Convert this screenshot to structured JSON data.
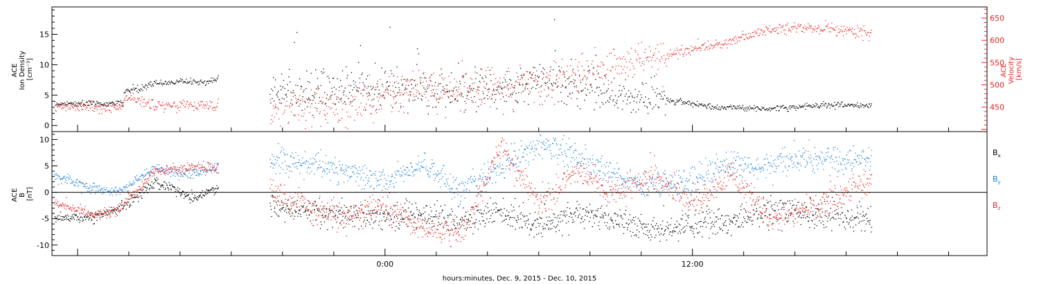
{
  "chart_data": [
    {
      "type": "scatter",
      "title": "",
      "ylabel_lines": [
        "ACE",
        "Ion Density",
        "[cm⁻³]"
      ],
      "y2label_lines": [
        "ACE",
        "Velocity",
        "[km/s]"
      ],
      "ylim": [
        -1,
        19.5
      ],
      "y2lim": [
        395,
        675
      ],
      "yticks": [
        0,
        5,
        10,
        15
      ],
      "y2ticks": [
        450,
        500,
        550,
        600,
        650
      ],
      "colors": {
        "density": "#000000",
        "velocity": "#e8201e"
      },
      "series": [
        {
          "axis": "left",
          "color": "#000000",
          "segments": [
            {
              "x": [
                -12.9,
                -12.0,
                -11.0,
                -10.2
              ],
              "y": [
                3.6,
                3.7,
                3.6,
                3.9
              ]
            },
            {
              "x": [
                -10.2,
                -9.5,
                -9.0,
                -8.0,
                -7.0,
                -6.5
              ],
              "y": [
                5.6,
                6.2,
                7.0,
                7.3,
                7.2,
                7.8
              ]
            },
            {
              "x": [
                -4.5,
                -3.0,
                -1.5,
                0.0,
                1.5,
                3.0,
                4.5,
                6.0,
                7.5,
                9.0,
                10.5,
                11.5,
                12.0,
                13.5,
                15.0,
                16.5,
                18.0,
                19.0
              ],
              "y": [
                6.0,
                5.5,
                6.0,
                6.5,
                6.0,
                5.5,
                6.5,
                7.5,
                7.0,
                5.0,
                4.5,
                4.0,
                3.5,
                3.0,
                2.8,
                3.2,
                3.5,
                3.4
              ]
            }
          ]
        },
        {
          "axis": "right",
          "color": "#e8201e",
          "segments": [
            {
              "x": [
                -12.9,
                -12.0,
                -11.0,
                -10.2
              ],
              "y": [
                452,
                451,
                450,
                450
              ]
            },
            {
              "x": [
                -10.2,
                -9.5,
                -9.0,
                -8.0,
                -7.0,
                -6.5
              ],
              "y": [
                470,
                462,
                455,
                458,
                454,
                452
              ]
            },
            {
              "x": [
                -4.5,
                -3.0,
                -1.5,
                0.0,
                1.5,
                3.0,
                4.5,
                6.0,
                7.5,
                9.0,
                10.5,
                11.5,
                12.0,
                13.5,
                15.0,
                16.5,
                18.0,
                19.0
              ],
              "y": [
                445,
                440,
                455,
                475,
                490,
                495,
                500,
                510,
                525,
                545,
                560,
                575,
                580,
                600,
                625,
                630,
                625,
                615
              ]
            }
          ]
        }
      ]
    },
    {
      "type": "scatter",
      "title": "",
      "ylabel_lines": [
        "ACE",
        "B",
        "[nT]"
      ],
      "ylim": [
        -12,
        11.5
      ],
      "yticks": [
        -10,
        -5,
        0,
        5,
        10
      ],
      "xlim": [
        -13,
        23.5
      ],
      "xticks": [
        0,
        12
      ],
      "xtick_labels": [
        "0:00",
        "12:00"
      ],
      "xlabel": "hours:minutes, Dec. 9, 2015 - Dec. 10, 2015",
      "legend": [
        "B",
        "B",
        "B"
      ],
      "legend_subscripts": [
        "x",
        "y",
        "z"
      ],
      "colors": {
        "Bx": "#000000",
        "By": "#1a7fd6",
        "Bz": "#e8201e"
      },
      "series": [
        {
          "name": "Bx",
          "color": "#000000",
          "segments": [
            {
              "x": [
                -12.9,
                -11.5,
                -10.5,
                -9.0,
                -7.5,
                -6.5
              ],
              "y": [
                -4.8,
                -4.8,
                -3.5,
                2.0,
                -1.0,
                1.0
              ]
            },
            {
              "x": [
                -4.5,
                -3.0,
                -1.5,
                0.0,
                1.5,
                3.0,
                4.5,
                6.0,
                7.5,
                9.0,
                10.5,
                12.0,
                13.5,
                15.0,
                16.5,
                18.0,
                19.0
              ],
              "y": [
                -3.0,
                -3.5,
                -4.0,
                -4.5,
                -4.0,
                -5.5,
                -3.5,
                -6.0,
                -4.0,
                -5.0,
                -7.5,
                -6.0,
                -5.5,
                -3.5,
                -4.0,
                -4.5,
                -5.0
              ]
            }
          ]
        },
        {
          "name": "By",
          "color": "#1a7fd6",
          "segments": [
            {
              "x": [
                -12.9,
                -11.5,
                -10.5,
                -9.0,
                -7.5,
                -6.5
              ],
              "y": [
                3.0,
                1.0,
                0.0,
                4.5,
                3.5,
                5.0
              ]
            },
            {
              "x": [
                -4.5,
                -3.0,
                -1.5,
                0.0,
                1.5,
                3.0,
                4.5,
                6.0,
                7.5,
                9.0,
                10.5,
                12.0,
                13.5,
                15.0,
                16.5,
                18.0,
                19.0
              ],
              "y": [
                6.0,
                5.5,
                4.0,
                2.0,
                5.0,
                0.5,
                5.0,
                9.0,
                7.0,
                3.0,
                1.5,
                2.5,
                5.5,
                5.0,
                7.0,
                6.0,
                6.5
              ]
            }
          ]
        },
        {
          "name": "Bz",
          "color": "#e8201e",
          "segments": [
            {
              "x": [
                -12.9,
                -11.5,
                -10.5,
                -9.0,
                -7.5,
                -6.5
              ],
              "y": [
                -2.0,
                -4.0,
                -3.5,
                4.0,
                5.0,
                4.5
              ]
            },
            {
              "x": [
                -4.5,
                -3.0,
                -1.5,
                0.0,
                1.5,
                3.0,
                4.5,
                6.0,
                7.5,
                9.0,
                10.5,
                12.0,
                13.5,
                15.0,
                16.5,
                18.0,
                19.0
              ],
              "y": [
                0.5,
                -3.0,
                -4.5,
                -2.5,
                -6.5,
                -8.0,
                9.0,
                -2.0,
                4.0,
                0.0,
                3.0,
                -2.0,
                3.5,
                -5.0,
                -3.0,
                0.0,
                2.0
              ]
            }
          ]
        }
      ]
    }
  ]
}
